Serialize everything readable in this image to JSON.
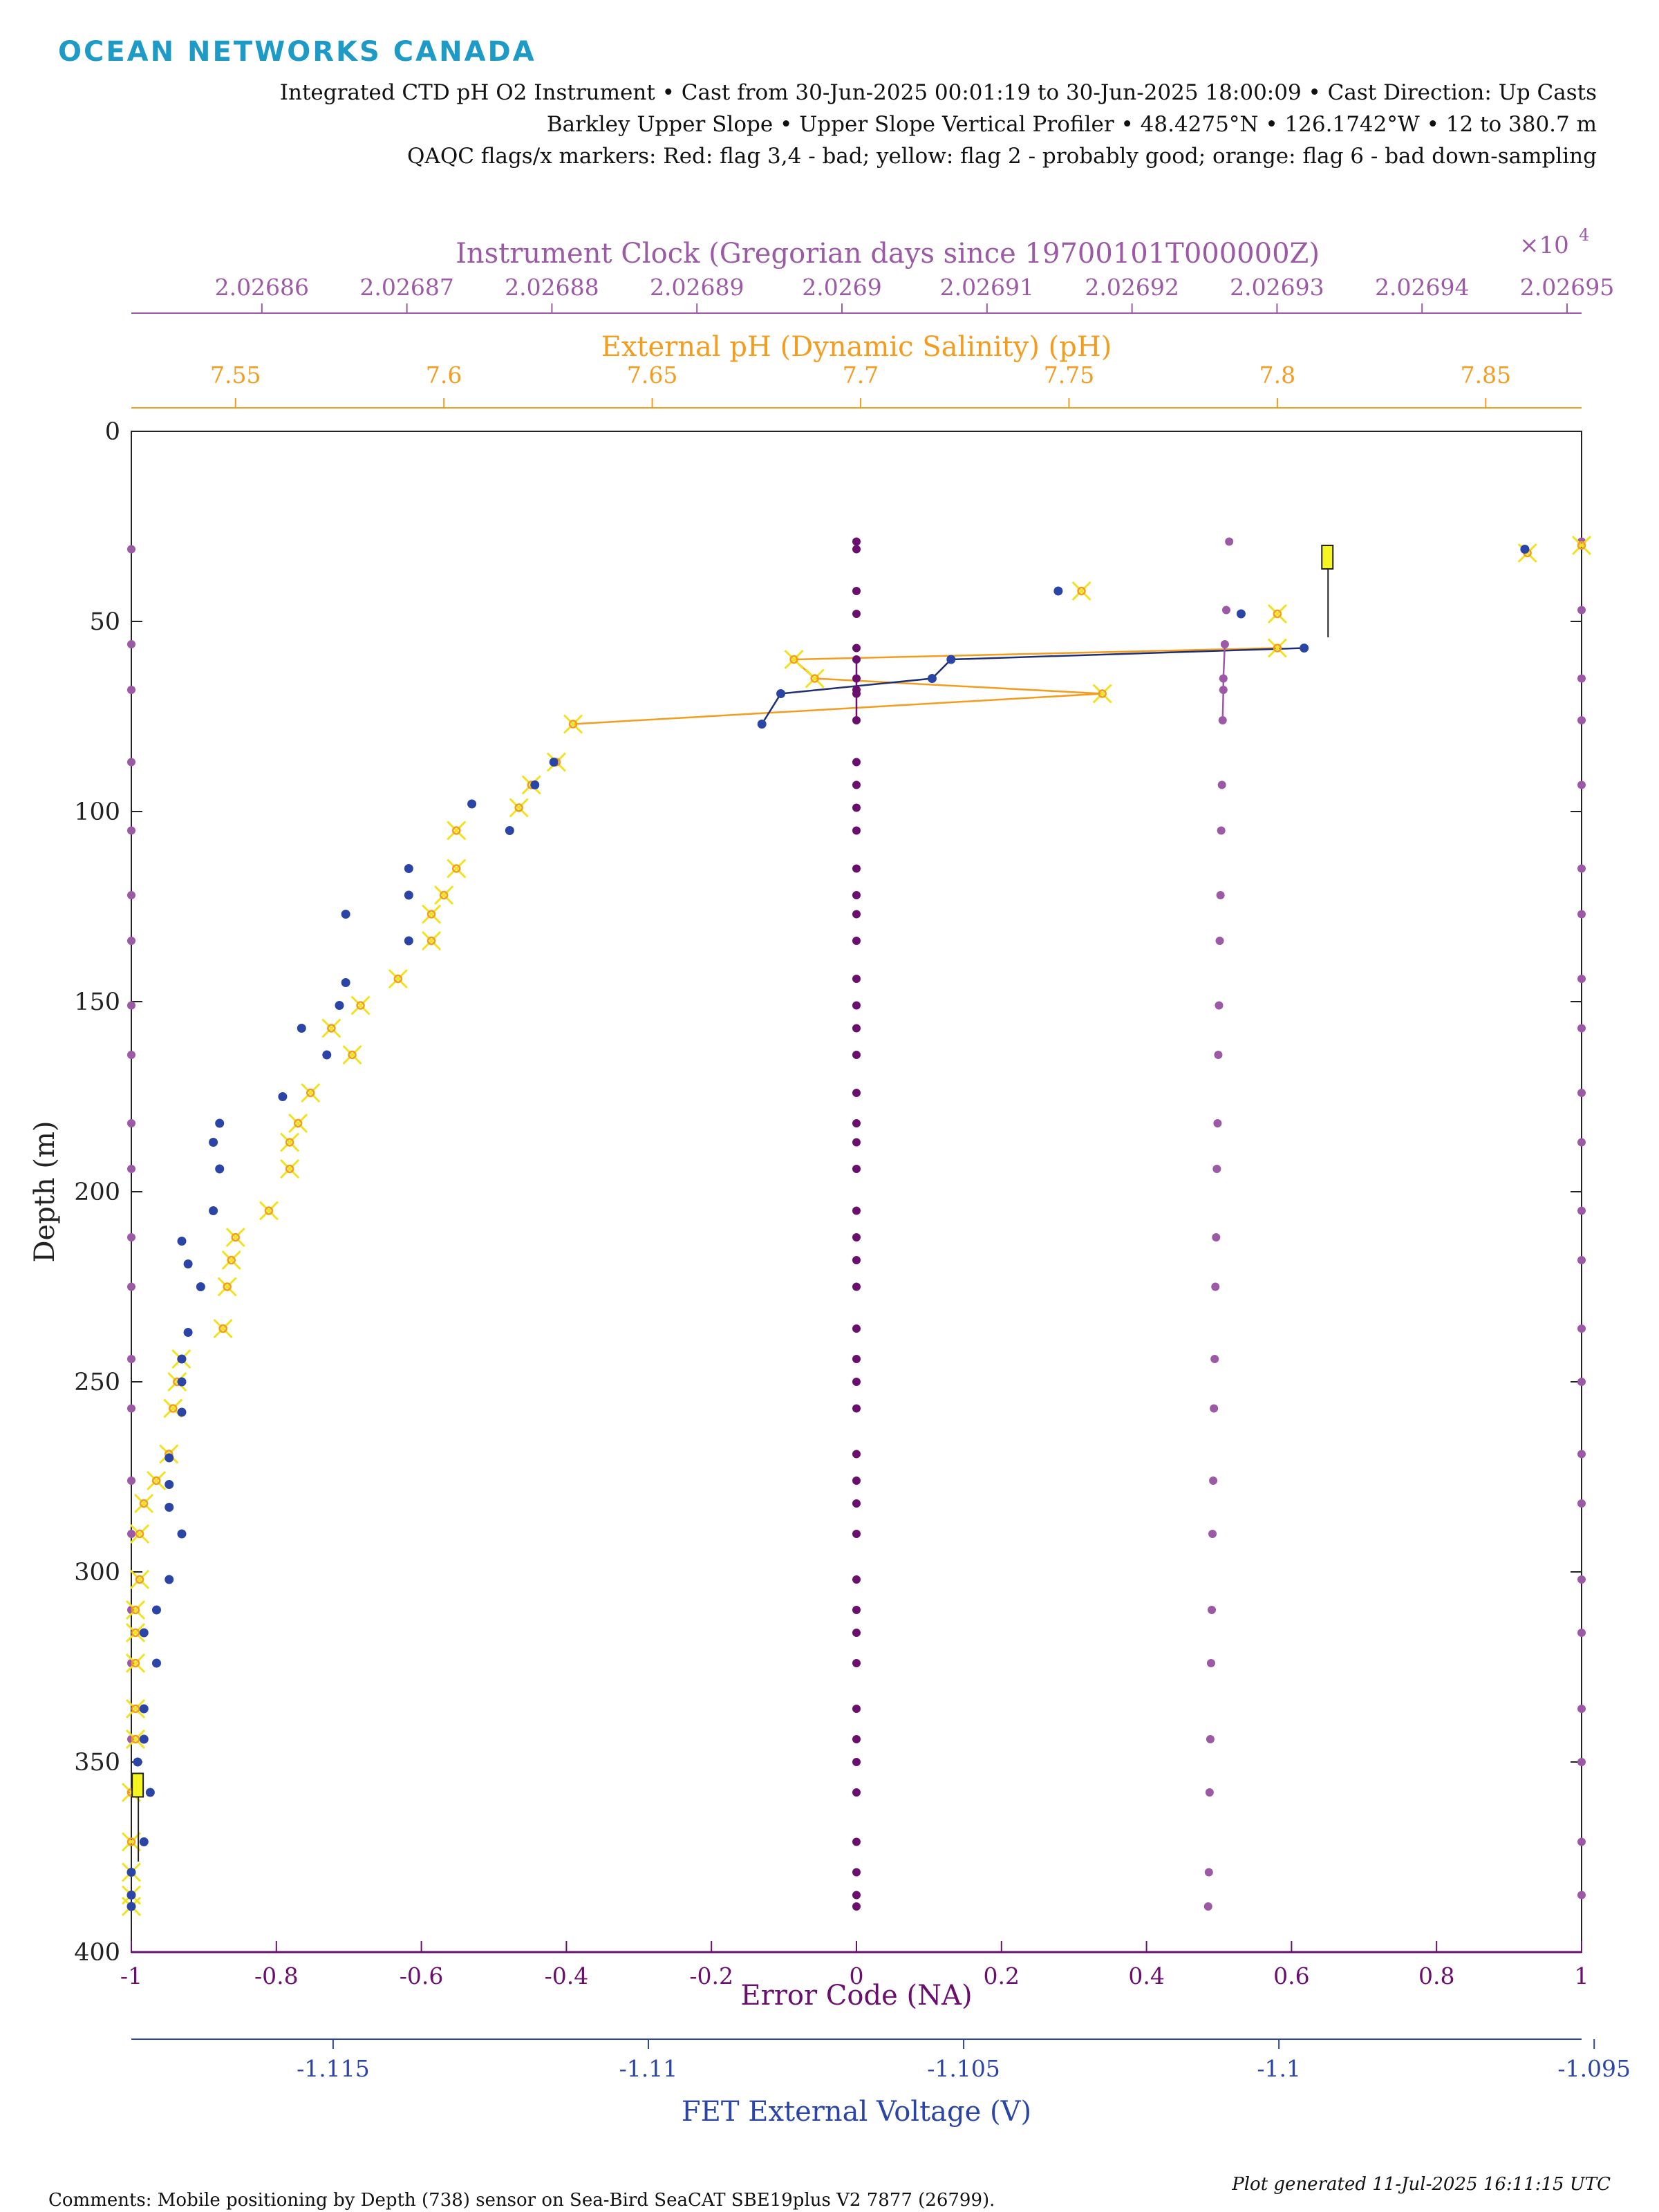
{
  "header": {
    "logo_text": "OCEAN NETWORKS CANADA",
    "line1": "Integrated CTD pH O2 Instrument • Cast from 30-Jun-2025 00:01:19 to 30-Jun-2025 18:00:09 • Cast Direction: Up Casts",
    "line2": "Barkley Upper Slope • Upper Slope Vertical Profiler • 48.4275°N • 126.1742°W • 12 to 380.7 m",
    "line3": "QAQC flags/x markers: Red: flag 3,4 - bad; yellow: flag 2 - probably good; orange: flag 6 - bad down-sampling"
  },
  "footer": {
    "comments": "Comments: Mobile positioning by Depth (738) sensor on Sea-Bird SeaCAT SBE19plus V2 7877 (26799).",
    "generated": "Plot generated 11-Jul-2025 16:11:15 UTC"
  },
  "colors": {
    "clock": "#9b59a6",
    "ph": "#f39c1e",
    "error": "#6a0f6e",
    "voltage": "#2a45a6",
    "flag_x": "#f2e21a",
    "flag_box": "#f5f522"
  },
  "chart_data": {
    "type": "scatter",
    "y_axis": {
      "label": "Depth (m)",
      "range": [
        0,
        400
      ],
      "reversed": true,
      "ticks": [
        "0",
        "50",
        "100",
        "150",
        "200",
        "250",
        "300",
        "350",
        "400"
      ]
    },
    "x_axes": {
      "clock": {
        "label": "Instrument Clock (Gregorian days since 19700101T000000Z)",
        "multiplier": "×10",
        "exponent": "4",
        "range": [
          2.026851,
          2.026951
        ],
        "ticks": [
          "2.02686",
          "2.02687",
          "2.02688",
          "2.02689",
          "2.0269",
          "2.02691",
          "2.02692",
          "2.02693",
          "2.02694",
          "2.02695"
        ],
        "tick_values": [
          2.02686,
          2.02687,
          2.02688,
          2.02689,
          2.0269,
          2.02691,
          2.02692,
          2.02693,
          2.02694,
          2.02695
        ]
      },
      "ph": {
        "label": "External pH (Dynamic Salinity) (pH)",
        "range": [
          7.525,
          7.873
        ],
        "ticks": [
          "7.55",
          "7.6",
          "7.65",
          "7.7",
          "7.75",
          "7.8",
          "7.85"
        ],
        "tick_values": [
          7.55,
          7.6,
          7.65,
          7.7,
          7.75,
          7.8,
          7.85
        ]
      },
      "error": {
        "label": "Error Code (NA)",
        "range": [
          -1,
          1
        ],
        "ticks": [
          "-1",
          "-0.8",
          "-0.6",
          "-0.4",
          "-0.2",
          "0",
          "0.2",
          "0.4",
          "0.6",
          "0.8",
          "1"
        ],
        "tick_values": [
          -1,
          -0.8,
          -0.6,
          -0.4,
          -0.2,
          0,
          0.2,
          0.4,
          0.6,
          0.8,
          1
        ]
      },
      "voltage": {
        "label": "FET External Voltage (V)",
        "range": [
          -1.1182,
          -1.0952
        ],
        "ticks": [
          "-1.115",
          "-1.11",
          "-1.105",
          "-1.1",
          "-1.095"
        ],
        "tick_values": [
          -1.115,
          -1.11,
          -1.105,
          -1.1,
          -1.095
        ]
      }
    },
    "series": [
      {
        "key": "clock",
        "depth": [
          29,
          31,
          47,
          56,
          65,
          68,
          76,
          87,
          93,
          105,
          115,
          122,
          127,
          134,
          144,
          151,
          157,
          164,
          174,
          182,
          187,
          194,
          205,
          212,
          218,
          225,
          236,
          244,
          250,
          257,
          269,
          276,
          282,
          290,
          302,
          310,
          316,
          324,
          336,
          344,
          350,
          358,
          371,
          379,
          385,
          388
        ],
        "values": [
          2.026951,
          2.026851,
          2.026951,
          2.026851,
          2.026951,
          2.026851,
          2.026951,
          2.026851,
          2.026951,
          2.026851,
          2.026951,
          2.026851,
          2.026951,
          2.026851,
          2.026951,
          2.026851,
          2.026951,
          2.026851,
          2.026951,
          2.026851,
          2.026951,
          2.026851,
          2.026951,
          2.026851,
          2.026951,
          2.026851,
          2.026951,
          2.026851,
          2.026951,
          2.026851,
          2.026951,
          2.026851,
          2.026951,
          2.026851,
          2.026951,
          2.026851,
          2.026951,
          2.026851,
          2.026951,
          2.026851,
          2.026951,
          2.026851,
          2.026951,
          2.026851,
          2.026951,
          2.026851
        ]
      },
      {
        "key": "voltage",
        "depth": [
          31,
          42,
          48,
          57,
          60,
          65,
          69,
          77,
          87,
          93,
          98,
          105,
          115,
          122,
          127,
          134,
          145,
          151,
          157,
          164,
          175,
          182,
          187,
          194,
          205,
          213,
          219,
          225,
          237,
          244,
          250,
          258,
          270,
          277,
          283,
          290,
          302,
          310,
          316,
          324,
          336,
          344,
          350,
          358,
          371,
          379,
          385,
          388
        ],
        "values": [
          -1.0961,
          -1.1035,
          -1.1006,
          -1.0996,
          -1.1052,
          -1.1055,
          -1.1079,
          -1.1082,
          -1.1115,
          -1.1118,
          -1.1128,
          -1.1122,
          -1.1138,
          -1.1138,
          -1.1148,
          -1.1138,
          -1.1148,
          -1.1149,
          -1.1155,
          -1.1151,
          -1.1158,
          -1.1168,
          -1.1169,
          -1.1168,
          -1.1169,
          -1.1174,
          -1.1173,
          -1.1171,
          -1.1173,
          -1.1174,
          -1.1174,
          -1.1174,
          -1.1176,
          -1.1176,
          -1.1176,
          -1.1174,
          -1.1176,
          -1.1178,
          -1.118,
          -1.1178,
          -1.118,
          -1.118,
          -1.1181,
          -1.1179,
          -1.118,
          -1.1182,
          -1.1182,
          -1.1182
        ]
      },
      {
        "key": "ph",
        "depth": [
          30,
          32,
          42,
          48,
          57,
          60,
          65,
          69,
          77,
          87,
          93,
          99,
          105,
          115,
          122,
          127,
          134,
          144,
          151,
          157,
          164,
          174,
          182,
          187,
          194,
          205,
          212,
          218,
          225,
          236,
          244,
          250,
          257,
          269,
          276,
          282,
          290,
          302,
          310,
          316,
          324,
          336,
          344,
          358,
          371,
          379,
          385,
          388
        ],
        "values": [
          7.873,
          7.86,
          7.753,
          7.8,
          7.8,
          7.684,
          7.689,
          7.758,
          7.631,
          7.627,
          7.621,
          7.618,
          7.603,
          7.603,
          7.6,
          7.597,
          7.597,
          7.589,
          7.58,
          7.573,
          7.578,
          7.568,
          7.565,
          7.563,
          7.563,
          7.558,
          7.55,
          7.549,
          7.548,
          7.547,
          7.537,
          7.536,
          7.535,
          7.534,
          7.531,
          7.528,
          7.527,
          7.527,
          7.526,
          7.526,
          7.526,
          7.526,
          7.526,
          7.525,
          7.525,
          7.525,
          7.525,
          7.525
        ]
      },
      {
        "key": "error",
        "depth": [
          29,
          31,
          42,
          48,
          57,
          60,
          65,
          68,
          69,
          76,
          87,
          93,
          99,
          105,
          115,
          122,
          127,
          134,
          144,
          151,
          157,
          164,
          174,
          182,
          187,
          194,
          205,
          212,
          218,
          225,
          236,
          244,
          250,
          257,
          269,
          276,
          282,
          290,
          302,
          310,
          316,
          324,
          336,
          344,
          350,
          358,
          371,
          379,
          385,
          388
        ],
        "values": [
          0,
          0,
          0,
          0,
          0,
          0,
          0,
          0,
          0,
          0,
          0,
          0,
          0,
          0,
          0,
          0,
          0,
          0,
          0,
          0,
          0,
          0,
          0,
          0,
          0,
          0,
          0,
          0,
          0,
          0,
          0,
          0,
          0,
          0,
          0,
          0,
          0,
          0,
          0,
          0,
          0,
          0,
          0,
          0,
          0,
          0,
          0,
          0,
          0,
          0
        ]
      },
      {
        "key": "error_second",
        "depth": [
          29,
          47,
          56,
          65,
          68,
          76,
          93,
          105,
          122,
          134,
          151,
          164,
          182,
          194,
          212,
          225,
          244,
          257,
          276,
          290,
          310,
          324,
          344,
          358,
          379,
          388
        ],
        "values": [
          0.514,
          0.51,
          0.508,
          0.506,
          0.506,
          0.505,
          0.504,
          0.503,
          0.502,
          0.501,
          0.5,
          0.499,
          0.498,
          0.497,
          0.496,
          0.495,
          0.494,
          0.493,
          0.492,
          0.491,
          0.49,
          0.489,
          0.488,
          0.487,
          0.486,
          0.485
        ]
      }
    ]
  }
}
